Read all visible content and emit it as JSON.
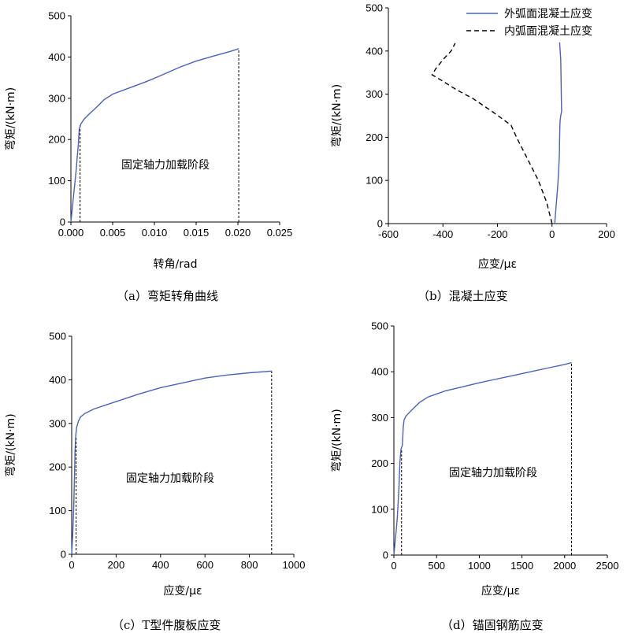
{
  "colors": {
    "line": "#4a63b7",
    "axis": "#000000",
    "dash": "#000000"
  },
  "chart_data": [
    {
      "id": "a",
      "type": "line",
      "caption": "（a）弯矩转角曲线",
      "xlabel": "转角/rad",
      "ylabel": "弯矩/(kN·m)",
      "xlim": [
        0,
        0.025
      ],
      "ylim": [
        0,
        500
      ],
      "xticks": [
        "0.000",
        "0.005",
        "0.010",
        "0.015",
        "0.020",
        "0.025"
      ],
      "yticks": [
        "0",
        "100",
        "200",
        "300",
        "400",
        "500"
      ],
      "annotation": "固定轴力加载阶段",
      "vlines": [
        0.0011,
        0.0201
      ],
      "grid": false,
      "series": [
        {
          "style": "solid",
          "x": [
            0,
            0.0003,
            0.0006,
            0.0009,
            0.001,
            0.0012,
            0.0016,
            0.0022,
            0.003,
            0.004,
            0.005,
            0.007,
            0.009,
            0.011,
            0.013,
            0.015,
            0.017,
            0.019,
            0.0201
          ],
          "y": [
            0,
            60,
            120,
            190,
            225,
            238,
            250,
            262,
            277,
            297,
            310,
            325,
            340,
            357,
            375,
            390,
            402,
            413,
            420
          ]
        }
      ]
    },
    {
      "id": "b",
      "type": "line",
      "caption": "（b）混凝土应变",
      "xlabel": "应变/με",
      "ylabel": "弯矩/(kN·m)",
      "xlim": [
        -600,
        200
      ],
      "ylim": [
        0,
        500
      ],
      "xticks": [
        "-600",
        "-400",
        "-200",
        "0",
        "200"
      ],
      "yticks": [
        "0",
        "100",
        "200",
        "300",
        "400",
        "500"
      ],
      "legend_position": "top-right",
      "grid": false,
      "series": [
        {
          "name": "外弧面混凝土应变",
          "style": "solid",
          "x": [
            10,
            15,
            20,
            24,
            27,
            28,
            29,
            30,
            32,
            35,
            34,
            33,
            32,
            30,
            28
          ],
          "y": [
            0,
            40,
            80,
            120,
            160,
            200,
            230,
            240,
            250,
            260,
            300,
            340,
            380,
            400,
            420
          ]
        },
        {
          "name": "内弧面混凝土应变",
          "style": "dashed",
          "x": [
            0,
            -20,
            -50,
            -90,
            -130,
            -150,
            -220,
            -290,
            -350,
            -400,
            -440,
            -425,
            -400,
            -370,
            -355
          ],
          "y": [
            0,
            50,
            100,
            150,
            200,
            228,
            260,
            290,
            310,
            330,
            345,
            360,
            380,
            400,
            418
          ]
        }
      ]
    },
    {
      "id": "c",
      "type": "line",
      "caption": "（c）T型件腹板应变",
      "xlabel": "应变/με",
      "ylabel": "弯矩/(kN·m)",
      "xlim": [
        0,
        1000
      ],
      "ylim": [
        0,
        500
      ],
      "xticks": [
        "0",
        "200",
        "400",
        "600",
        "800",
        "1000"
      ],
      "yticks": [
        "0",
        "100",
        "200",
        "300",
        "400",
        "500"
      ],
      "annotation": "固定轴力加载阶段",
      "vlines": [
        20,
        900
      ],
      "grid": false,
      "series": [
        {
          "style": "solid",
          "x": [
            0,
            5,
            10,
            13,
            15,
            18,
            22,
            30,
            40,
            60,
            100,
            200,
            300,
            400,
            500,
            600,
            700,
            800,
            900
          ],
          "y": [
            0,
            50,
            120,
            190,
            235,
            270,
            290,
            305,
            315,
            323,
            333,
            350,
            367,
            382,
            393,
            404,
            411,
            416,
            420
          ]
        }
      ]
    },
    {
      "id": "d",
      "type": "line",
      "caption": "（d）锚固钢筋应变",
      "xlabel": "应变/με",
      "ylabel": "弯矩/(kN·m)",
      "xlim": [
        0,
        2500
      ],
      "ylim": [
        0,
        500
      ],
      "xticks": [
        "0",
        "500",
        "1000",
        "1500",
        "2000",
        "2500"
      ],
      "yticks": [
        "0",
        "100",
        "200",
        "300",
        "400",
        "500"
      ],
      "annotation": "固定轴力加载阶段",
      "vlines": [
        90,
        2080
      ],
      "grid": false,
      "series": [
        {
          "style": "solid",
          "x": [
            0,
            20,
            40,
            60,
            70,
            80,
            85,
            100,
            110,
            120,
            140,
            200,
            300,
            400,
            600,
            800,
            1000,
            1200,
            1400,
            1600,
            1800,
            2000,
            2080
          ],
          "y": [
            0,
            40,
            80,
            150,
            200,
            225,
            232,
            240,
            280,
            295,
            303,
            315,
            333,
            345,
            358,
            367,
            376,
            384,
            392,
            400,
            408,
            416,
            420
          ]
        }
      ]
    }
  ]
}
